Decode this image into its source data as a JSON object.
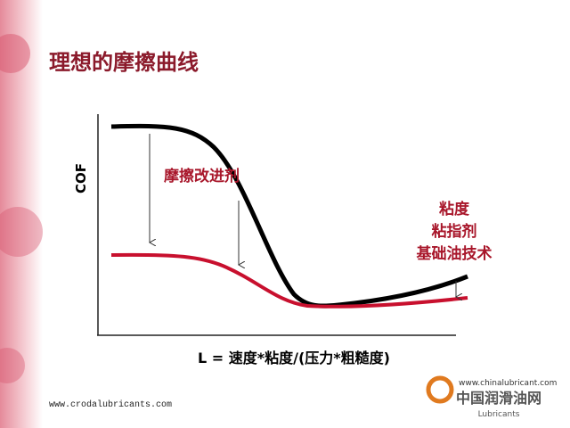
{
  "title": "理想的摩擦曲线",
  "diagram": {
    "y_axis_label": "COF",
    "x_axis_label": "L = 速度*粘度/(压力*粗糙度)",
    "annotations": {
      "friction_modifier": "摩擦改进剂",
      "right": [
        "粘度",
        "粘指剂",
        "基础油技术"
      ]
    }
  },
  "footer": {
    "left_url": "www.crodalubricants.com",
    "logo_url": "www.chinalubricant.com",
    "logo_name": "中国润滑油网",
    "logo_sub": "Lubricants"
  }
}
